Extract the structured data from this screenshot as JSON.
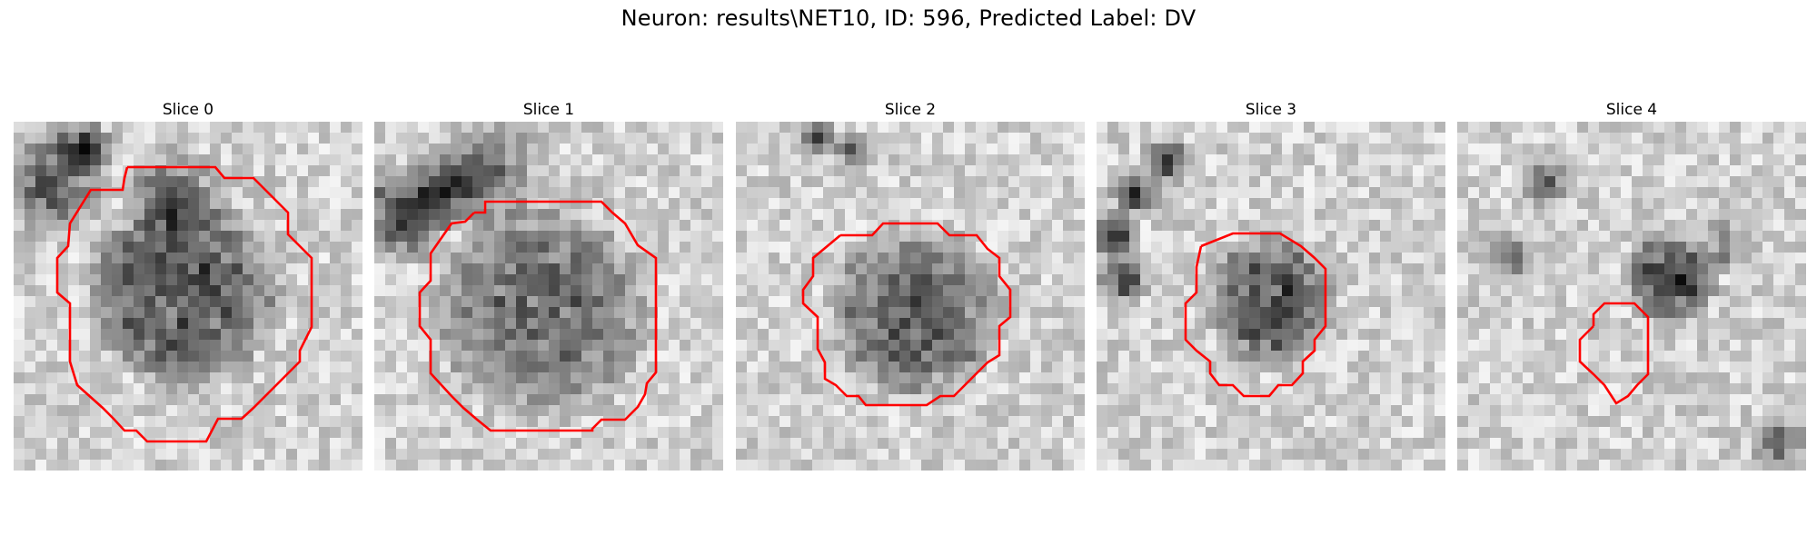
{
  "figure": {
    "title": "Neuron: results\\NET10, ID: 596, Predicted Label: DV"
  },
  "colors": {
    "contour": "#ff0000",
    "background": "#ffffff"
  },
  "panels": [
    {
      "title": "Slice 0"
    },
    {
      "title": "Slice 1"
    },
    {
      "title": "Slice 2"
    },
    {
      "title": "Slice 3"
    },
    {
      "title": "Slice 4"
    }
  ]
}
